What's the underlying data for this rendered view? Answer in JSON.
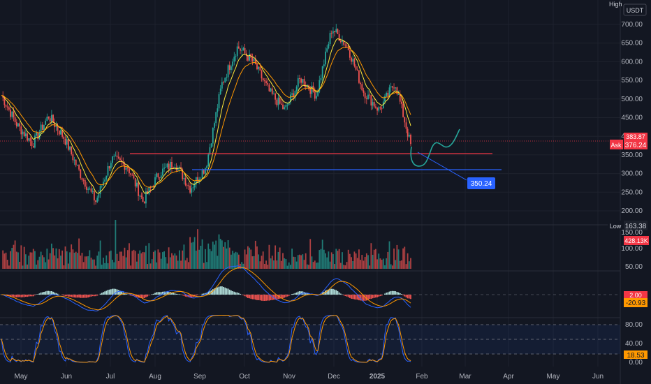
{
  "header": {
    "currency": "USDT",
    "high_tag": "High"
  },
  "price_axis": {
    "ticks": [
      "700.00",
      "650.00",
      "600.00",
      "550.00",
      "500.00",
      "450.00",
      "400.00",
      "350.00",
      "300.00",
      "250.00",
      "200.00"
    ]
  },
  "badges": {
    "ask_label": "Ask",
    "ask_value": "376.24",
    "price_partial": "383.87",
    "low_label": "Low",
    "low_value": "163.38",
    "target_value": "350.24"
  },
  "volume_axis": {
    "ticks": [
      "150.00",
      "100.00",
      "50.00"
    ],
    "current": "428.13K"
  },
  "macd_axis": {
    "value_a": "2.00",
    "value_b": "-20.93"
  },
  "stoch_axis": {
    "ticks": [
      "80.00",
      "40.00",
      "0.00"
    ],
    "value": "18.53"
  },
  "time_axis": {
    "labels": [
      "May",
      "Jun",
      "Jul",
      "Aug",
      "Sep",
      "Oct",
      "Nov",
      "Dec",
      "2025",
      "Feb",
      "Mar",
      "Apr",
      "May",
      "Jun"
    ]
  },
  "colors": {
    "up": "#26a69a",
    "down": "#ef5350",
    "support_red": "#f23645",
    "support_blue": "#2962ff",
    "ema_fast": "#ffeb3b",
    "ema_slow": "#ff9800"
  },
  "chart_data": {
    "type": "candlestick",
    "ylim": [
      170,
      760
    ],
    "support_levels": [
      350.24,
      308
    ],
    "close_path": [
      {
        "x": "May",
        "y": 510
      },
      {
        "x": "mid-May",
        "y": 430
      },
      {
        "x": "late-May",
        "y": 380
      },
      {
        "x": "Jun",
        "y": 455
      },
      {
        "x": "mid-Jun",
        "y": 395
      },
      {
        "x": "late-Jun",
        "y": 300
      },
      {
        "x": "Jul",
        "y": 225
      },
      {
        "x": "mid-Jul",
        "y": 340
      },
      {
        "x": "late-Jul",
        "y": 320
      },
      {
        "x": "Aug",
        "y": 225
      },
      {
        "x": "mid-Aug",
        "y": 300
      },
      {
        "x": "late-Aug",
        "y": 330
      },
      {
        "x": "Sep",
        "y": 260
      },
      {
        "x": "mid-Sep",
        "y": 320
      },
      {
        "x": "late-Sep",
        "y": 540
      },
      {
        "x": "Oct",
        "y": 640
      },
      {
        "x": "mid-Oct",
        "y": 600
      },
      {
        "x": "late-Oct",
        "y": 520
      },
      {
        "x": "Nov",
        "y": 470
      },
      {
        "x": "mid-Nov",
        "y": 555
      },
      {
        "x": "late-Nov",
        "y": 510
      },
      {
        "x": "Dec",
        "y": 690
      },
      {
        "x": "mid-Dec",
        "y": 640
      },
      {
        "x": "late-Dec",
        "y": 520
      },
      {
        "x": "2025",
        "y": 470
      },
      {
        "x": "mid-Jan",
        "y": 545
      },
      {
        "x": "late-Jan",
        "y": 376
      }
    ],
    "projection": [
      376,
      325,
      375,
      420
    ],
    "volume_range": [
      40,
      250
    ],
    "stoch_levels": [
      80,
      40
    ]
  }
}
